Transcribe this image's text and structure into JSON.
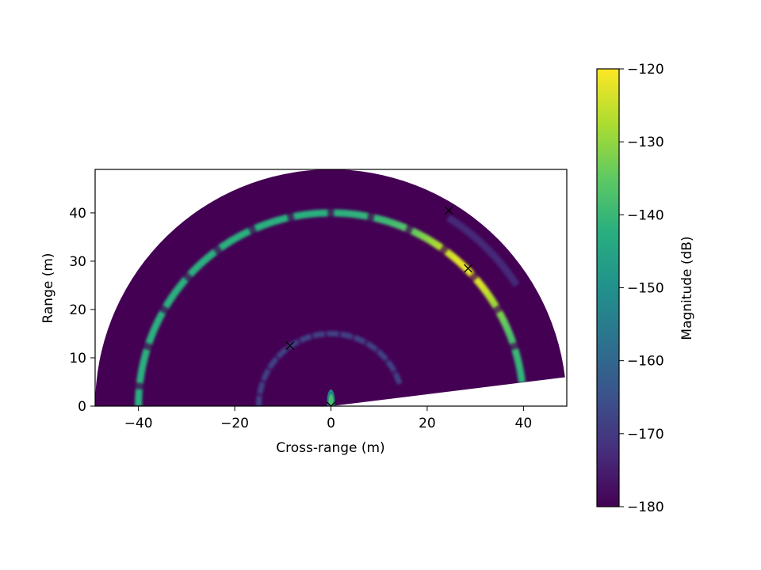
{
  "chart_data": {
    "type": "heatmap",
    "title": "",
    "xlabel": "Cross-range (m)",
    "ylabel": "Range (m)",
    "xlim": [
      -49,
      49
    ],
    "ylim": [
      0,
      49
    ],
    "x_ticks": [
      -40,
      -20,
      0,
      20,
      40
    ],
    "y_ticks": [
      0,
      10,
      20,
      30,
      40
    ],
    "x_tick_labels": [
      "−40",
      "−20",
      "0",
      "20",
      "40"
    ],
    "y_tick_labels": [
      "0",
      "10",
      "20",
      "30",
      "40"
    ],
    "fan": {
      "radius": 49,
      "start_angle_deg": 7,
      "end_angle_deg": 180
    },
    "colormap": "viridis",
    "colorbar": {
      "label": "Magnitude (dB)",
      "min": -180,
      "max": -120,
      "ticks": [
        -180,
        -170,
        -160,
        -150,
        -140,
        -130,
        -120
      ],
      "tick_labels": [
        "−180",
        "−170",
        "−160",
        "−150",
        "−140",
        "−130",
        "−120"
      ]
    },
    "range_rings": [
      {
        "range": 40,
        "level_db": -142,
        "peak_db": -122,
        "peak_angle_deg": 45,
        "start_angle_deg": 7,
        "end_angle_deg": 180,
        "segmented": true
      },
      {
        "range": 15,
        "level_db": -168,
        "start_angle_deg": 18,
        "end_angle_deg": 180,
        "segmented": true
      },
      {
        "range": 46,
        "level_db": -172,
        "start_angle_deg": 33,
        "end_angle_deg": 58,
        "segmented": false
      }
    ],
    "targets": [
      {
        "x": 0,
        "y": 0
      },
      {
        "x": -8.5,
        "y": 12.5
      },
      {
        "x": 28.5,
        "y": 28.5
      },
      {
        "x": 24.5,
        "y": 40.5
      }
    ]
  }
}
